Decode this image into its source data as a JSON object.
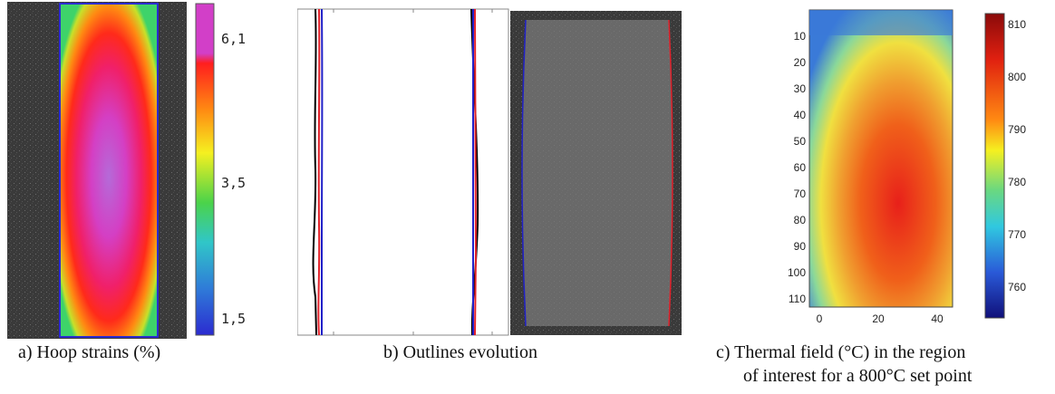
{
  "panels": {
    "a": {
      "caption": "a) Hoop strains (%)",
      "colorbar_ticks": [
        "6,1",
        "3,5",
        "1,5"
      ],
      "colors": {
        "low": "#2b2bd0",
        "mid": "#2fd07a",
        "high": "#ff1e1e",
        "top": "#d23fc8"
      }
    },
    "b": {
      "caption": "b) Outlines evolution",
      "outline_colors": [
        "#000000",
        "#e0202a",
        "#2020c8"
      ]
    },
    "c": {
      "caption_line1": "c) Thermal field (°C) in the region",
      "caption_line2": "of interest for a 800°C set point",
      "y_ticks": [
        "10",
        "20",
        "30",
        "40",
        "50",
        "60",
        "70",
        "80",
        "90",
        "100",
        "110"
      ],
      "x_ticks": [
        "0",
        "20",
        "40"
      ],
      "colorbar_ticks": [
        "810",
        "800",
        "790",
        "780",
        "770",
        "760"
      ]
    }
  }
}
